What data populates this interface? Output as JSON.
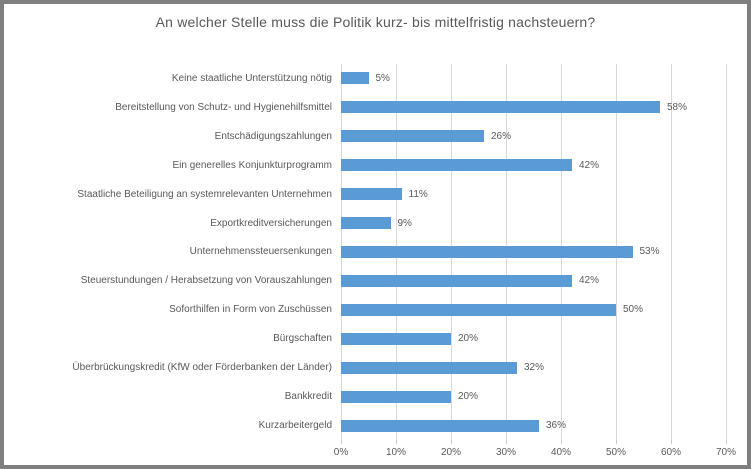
{
  "frame": {
    "background": "#ffffff",
    "border_color": "#7f7f7f"
  },
  "chart_data": {
    "type": "bar",
    "orientation": "horizontal",
    "title": "An welcher Stelle muss die Politik kurz- bis mittelfristig nachsteuern?",
    "categories": [
      "Keine staatliche Unterstützung nötig",
      "Bereitstellung von Schutz- und Hygienehilfsmittel",
      "Entschädigungszahlungen",
      "Ein generelles Konjunkturprogramm",
      "Staatliche Beteiligung an systemrelevanten Unternehmen",
      "Exportkreditversicherungen",
      "Unternehmenssteuersenkungen",
      "Steuerstundungen / Herabsetzung von Vorauszahlungen",
      "Soforthilfen in Form von Zuschüssen",
      "Bürgschaften",
      "Überbrückungskredit (KfW oder Förderbanken der Länder)",
      "Bankkredit",
      "Kurzarbeitergeld"
    ],
    "values": [
      5,
      58,
      26,
      42,
      11,
      9,
      53,
      42,
      50,
      20,
      32,
      20,
      36
    ],
    "value_labels": [
      "5%",
      "58%",
      "26%",
      "42%",
      "11%",
      "9%",
      "53%",
      "42%",
      "50%",
      "20%",
      "32%",
      "20%",
      "36%"
    ],
    "x_ticks": [
      "0%",
      "10%",
      "20%",
      "30%",
      "40%",
      "50%",
      "60%",
      "70%"
    ],
    "xlim": [
      0,
      70
    ],
    "xlabel": "",
    "ylabel": "",
    "grid": true,
    "legend": "none",
    "bar_color": "#5b9bd5",
    "gridline_color": "#d9d9d9",
    "text_color": "#595959"
  }
}
